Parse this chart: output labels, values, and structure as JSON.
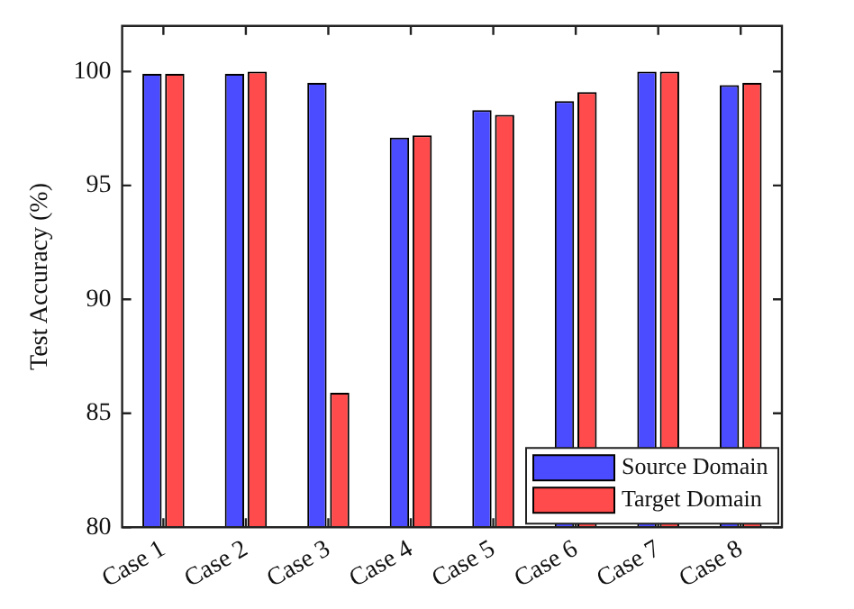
{
  "chart_data": {
    "type": "bar",
    "ylabel": "Test Accuracy (%)",
    "categories": [
      "Case 1",
      "Case 2",
      "Case 3",
      "Case 4",
      "Case 5",
      "Case 6",
      "Case 7",
      "Case 8"
    ],
    "series": [
      {
        "name": "Source Domain",
        "color": "#4b4bff",
        "values": [
          99.9,
          99.9,
          99.5,
          97.1,
          98.3,
          98.7,
          100,
          99.4
        ]
      },
      {
        "name": "Target Domain",
        "color": "#ff4b4b",
        "values": [
          99.9,
          100,
          85.9,
          97.2,
          98.1,
          99.1,
          100,
          99.5
        ]
      }
    ],
    "ylim": [
      80,
      102
    ],
    "yticks": [
      80,
      85,
      90,
      95,
      100
    ],
    "grid": false,
    "legend": "bottom right"
  }
}
